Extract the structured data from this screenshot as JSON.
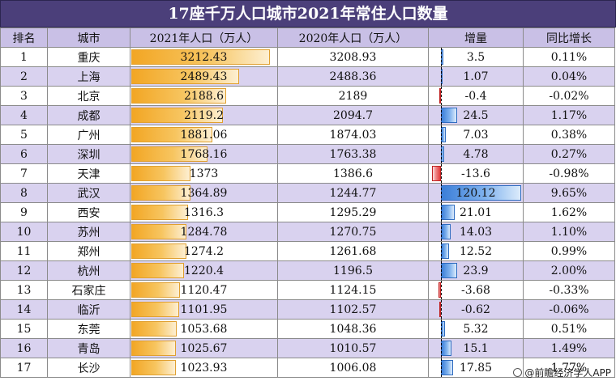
{
  "chart_data": {
    "type": "table",
    "title": "17座千万人口城市2021年常住人口数量",
    "columns": [
      "排名",
      "城市",
      "2021年人口（万人）",
      "2020年人口（万人）",
      "增量",
      "同比增长"
    ],
    "rows": [
      {
        "rank": "1",
        "city": "重庆",
        "pop2021": 3212.43,
        "pop2021_text": "3212.43",
        "pop2020": "3208.93",
        "delta": 3.5,
        "delta_text": "3.5",
        "growth": "0.11%"
      },
      {
        "rank": "2",
        "city": "上海",
        "pop2021": 2489.43,
        "pop2021_text": "2489.43",
        "pop2020": "2488.36",
        "delta": 1.07,
        "delta_text": "1.07",
        "growth": "0.04%"
      },
      {
        "rank": "3",
        "city": "北京",
        "pop2021": 2188.6,
        "pop2021_text": "2188.6",
        "pop2020": "2189",
        "delta": -0.4,
        "delta_text": "-0.4",
        "growth": "-0.02%"
      },
      {
        "rank": "4",
        "city": "成都",
        "pop2021": 2119.2,
        "pop2021_text": "2119.2",
        "pop2020": "2094.7",
        "delta": 24.5,
        "delta_text": "24.5",
        "growth": "1.17%"
      },
      {
        "rank": "5",
        "city": "广州",
        "pop2021": 1881.06,
        "pop2021_text": "1881.06",
        "pop2020": "1874.03",
        "delta": 7.03,
        "delta_text": "7.03",
        "growth": "0.38%"
      },
      {
        "rank": "6",
        "city": "深圳",
        "pop2021": 1768.16,
        "pop2021_text": "1768.16",
        "pop2020": "1763.38",
        "delta": 4.78,
        "delta_text": "4.78",
        "growth": "0.27%"
      },
      {
        "rank": "7",
        "city": "天津",
        "pop2021": 1373,
        "pop2021_text": "1373",
        "pop2020": "1386.6",
        "delta": -13.6,
        "delta_text": "-13.6",
        "growth": "-0.98%"
      },
      {
        "rank": "8",
        "city": "武汉",
        "pop2021": 1364.89,
        "pop2021_text": "1364.89",
        "pop2020": "1244.77",
        "delta": 120.12,
        "delta_text": "120.12",
        "growth": "9.65%"
      },
      {
        "rank": "9",
        "city": "西安",
        "pop2021": 1316.3,
        "pop2021_text": "1316.3",
        "pop2020": "1295.29",
        "delta": 21.01,
        "delta_text": "21.01",
        "growth": "1.62%"
      },
      {
        "rank": "10",
        "city": "苏州",
        "pop2021": 1284.78,
        "pop2021_text": "1284.78",
        "pop2020": "1270.75",
        "delta": 14.03,
        "delta_text": "14.03",
        "growth": "1.10%"
      },
      {
        "rank": "11",
        "city": "郑州",
        "pop2021": 1274.2,
        "pop2021_text": "1274.2",
        "pop2020": "1261.68",
        "delta": 12.52,
        "delta_text": "12.52",
        "growth": "0.99%"
      },
      {
        "rank": "12",
        "city": "杭州",
        "pop2021": 1220.4,
        "pop2021_text": "1220.4",
        "pop2020": "1196.5",
        "delta": 23.9,
        "delta_text": "23.9",
        "growth": "2.00%"
      },
      {
        "rank": "13",
        "city": "石家庄",
        "pop2021": 1120.47,
        "pop2021_text": "1120.47",
        "pop2020": "1124.15",
        "delta": -3.68,
        "delta_text": "-3.68",
        "growth": "-0.33%"
      },
      {
        "rank": "14",
        "city": "临沂",
        "pop2021": 1101.95,
        "pop2021_text": "1101.95",
        "pop2020": "1102.57",
        "delta": -0.62,
        "delta_text": "-0.62",
        "growth": "-0.06%"
      },
      {
        "rank": "15",
        "city": "东莞",
        "pop2021": 1053.68,
        "pop2021_text": "1053.68",
        "pop2020": "1048.36",
        "delta": 5.32,
        "delta_text": "5.32",
        "growth": "0.51%"
      },
      {
        "rank": "16",
        "city": "青岛",
        "pop2021": 1025.67,
        "pop2021_text": "1025.67",
        "pop2020": "1010.57",
        "delta": 15.1,
        "delta_text": "15.1",
        "growth": "1.49%"
      },
      {
        "rank": "17",
        "city": "长沙",
        "pop2021": 1023.93,
        "pop2021_text": "1023.93",
        "pop2020": "1006.08",
        "delta": 17.85,
        "delta_text": "17.85",
        "growth": "1.77%"
      }
    ],
    "colors": {
      "title_bg": "#4b3f7a",
      "header_bg": "#c9c0e6",
      "row_alt_bg": "#d9d2ef",
      "pop_bar": "#f2a624",
      "delta_pos_bar": "#3b7ed8",
      "delta_neg_bar": "#e23b3b"
    }
  },
  "watermark": {
    "text": "@前瞻经济学人APP",
    "icon": "circle-logo-icon"
  }
}
